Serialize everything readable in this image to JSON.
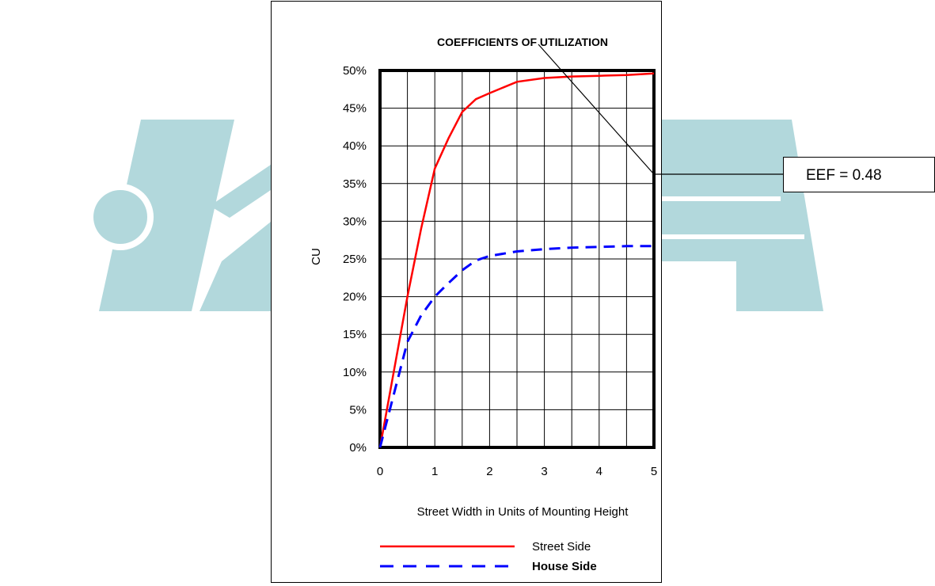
{
  "chart_data": {
    "type": "line",
    "title": "COEFFICIENTS OF UTILIZATION",
    "xlabel": "Street Width in Units of Mounting Height",
    "ylabel": "CU",
    "xlim": [
      0,
      5
    ],
    "ylim": [
      0,
      50
    ],
    "x_ticks": [
      "0",
      "1",
      "2",
      "3",
      "4",
      "5"
    ],
    "y_ticks": [
      "0%",
      "5%",
      "10%",
      "15%",
      "20%",
      "25%",
      "30%",
      "35%",
      "40%",
      "45%",
      "50%"
    ],
    "grid": true,
    "legend_position": "bottom",
    "series": [
      {
        "name": "Street Side",
        "color": "#ff0000",
        "style": "solid",
        "x": [
          0,
          0.25,
          0.5,
          0.75,
          1,
          1.25,
          1.5,
          1.75,
          2,
          2.5,
          3,
          3.5,
          4,
          4.5,
          5
        ],
        "y": [
          0,
          10,
          20,
          29,
          37,
          41,
          44.5,
          46.2,
          47,
          48.5,
          49,
          49.2,
          49.3,
          49.4,
          49.6
        ]
      },
      {
        "name": "House Side",
        "color": "#0000ff",
        "style": "dashed",
        "x": [
          0,
          0.25,
          0.5,
          0.75,
          1,
          1.25,
          1.5,
          1.75,
          2,
          2.5,
          3,
          3.5,
          4,
          4.5,
          5
        ],
        "y": [
          0,
          7,
          14,
          17.5,
          20,
          21.8,
          23.5,
          24.8,
          25.4,
          26,
          26.3,
          26.5,
          26.6,
          26.7,
          26.7
        ]
      }
    ],
    "annotations": [
      {
        "text": "EEF = 0.48"
      }
    ]
  },
  "watermark": {
    "color": "#b2d8dc",
    "name": "watermark-logo"
  }
}
